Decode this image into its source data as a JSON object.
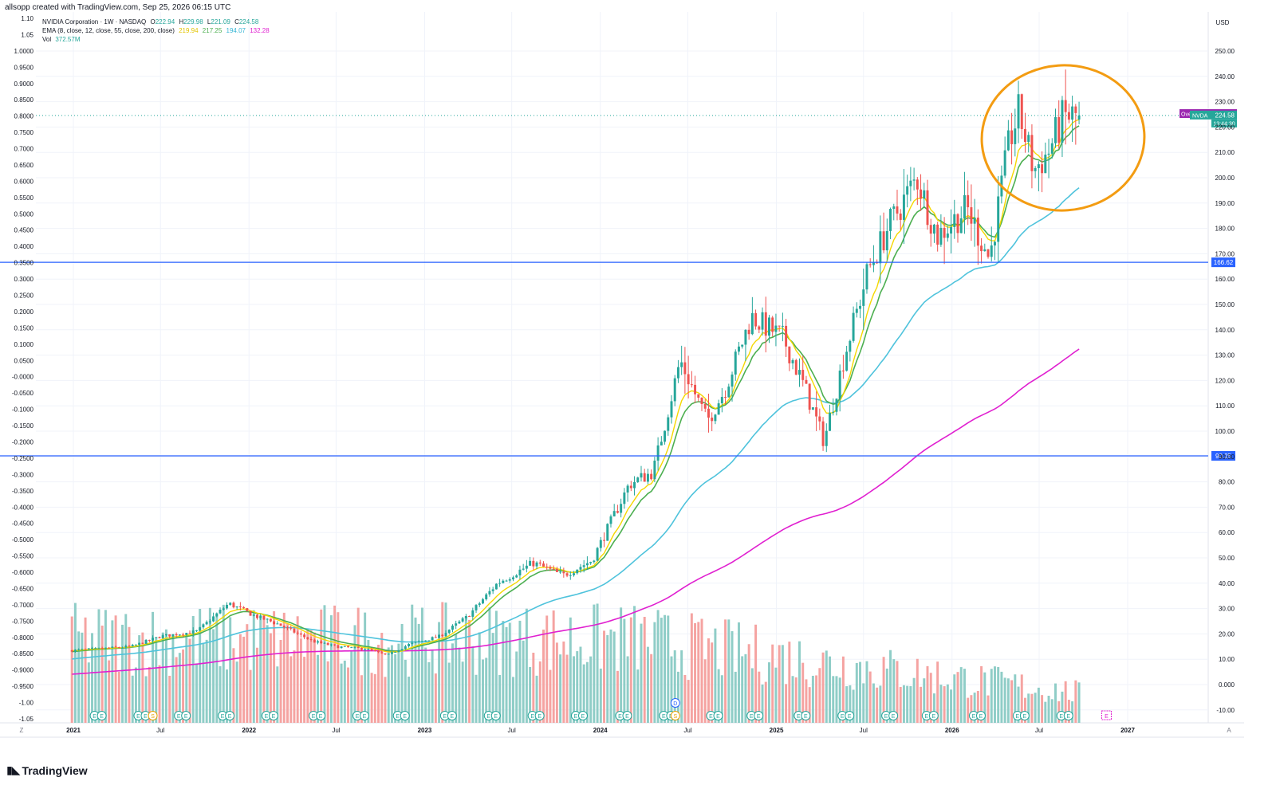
{
  "caption": "allsopp created with TradingView.com, Sep 25, 2026 06:15 UTC",
  "legend": {
    "symbol": "NVIDIA Corporation · 1W · NASDAQ",
    "o_label": "O",
    "o": "222.94",
    "h_label": "H",
    "h": "229.98",
    "l_label": "L",
    "l": "221.09",
    "c_label": "C",
    "c": "224.58",
    "ema_label": "EMA (8, close, 12, close, 55, close, 200, close)",
    "ema_values": [
      "219.94",
      "217.25",
      "194.07",
      "132.28"
    ],
    "vol_label": "Vol",
    "vol_value": "372.57M"
  },
  "price_axis": {
    "currency": "USD",
    "ticks": [
      "250.00",
      "240.00",
      "230.00",
      "220.00",
      "210.00",
      "200.00",
      "190.00",
      "180.00",
      "170.00",
      "160.00",
      "150.00",
      "140.00",
      "130.00",
      "120.00",
      "110.00",
      "100.00",
      "90.00",
      "80.00",
      "70.00",
      "60.00",
      "50.00",
      "40.00",
      "30.00",
      "20.00",
      "10.00",
      "0.000",
      "-10.00"
    ],
    "overnight_label": "Overnight",
    "overnight_value": "225.15",
    "nvda_label": "NVDA",
    "nvda_value": "224.58",
    "countdown": "13:44:30",
    "line_upper_value": "166.62",
    "line_lower_value": "90.25"
  },
  "left_axis": {
    "ticks": [
      "1.10",
      "1.05",
      "1.0000",
      "0.9500",
      "0.9000",
      "0.8500",
      "0.8000",
      "0.7500",
      "0.7000",
      "0.6500",
      "0.6000",
      "0.5500",
      "0.5000",
      "0.4500",
      "0.4000",
      "0.3500",
      "0.3000",
      "0.2500",
      "0.2000",
      "0.1500",
      "0.1000",
      "0.0500",
      "-0.0000",
      "-0.0500",
      "-0.1000",
      "-0.1500",
      "-0.2000",
      "-0.2500",
      "-0.3000",
      "-0.3500",
      "-0.4000",
      "-0.4500",
      "-0.5000",
      "-0.5500",
      "-0.6000",
      "-0.6500",
      "-0.7000",
      "-0.7500",
      "-0.8000",
      "-0.8500",
      "-0.9000",
      "-0.9500",
      "-1.00",
      "-1.05"
    ]
  },
  "time_axis": {
    "labels": [
      "2021",
      "Jul",
      "2022",
      "Jul",
      "2023",
      "Jul",
      "2024",
      "Jul",
      "2025",
      "Jul",
      "2026",
      "Jul",
      "2027"
    ],
    "left_button": "Z",
    "right_button": "A"
  },
  "event_markers": {
    "earnings": "E",
    "split": "S",
    "dividend": "D"
  },
  "colors": {
    "up": "#26a69a",
    "down": "#ef5350",
    "vol_up": "#8fcdc7",
    "vol_down": "#f5a3a1",
    "ema8": "#f5d800",
    "ema12": "#4caf50",
    "ema55": "#4fc3dc",
    "ema200": "#e020d0",
    "hline": "#2962ff",
    "circle": "#f39c12",
    "overnight_bg": "#9c27b0",
    "nvda_bg": "#26a69a"
  },
  "chart_data": {
    "type": "candlestick",
    "title": "NVIDIA Corporation · 1W · NASDAQ",
    "ylim": [
      -15,
      260
    ],
    "horizontal_lines": [
      166.62,
      90.25
    ],
    "last_close": 224.58,
    "control_points": [
      {
        "date": "2021-01-01",
        "close": 13.5
      },
      {
        "date": "2021-05-01",
        "close": 15
      },
      {
        "date": "2021-07-01",
        "close": 19
      },
      {
        "date": "2021-09-15",
        "close": 21
      },
      {
        "date": "2021-11-20",
        "close": 32
      },
      {
        "date": "2022-01-15",
        "close": 27
      },
      {
        "date": "2022-03-01",
        "close": 24
      },
      {
        "date": "2022-05-15",
        "close": 17
      },
      {
        "date": "2022-07-01",
        "close": 15
      },
      {
        "date": "2022-09-01",
        "close": 14
      },
      {
        "date": "2022-10-15",
        "close": 11.5
      },
      {
        "date": "2022-12-01",
        "close": 16
      },
      {
        "date": "2023-02-01",
        "close": 19
      },
      {
        "date": "2023-04-01",
        "close": 27
      },
      {
        "date": "2023-06-01",
        "close": 40
      },
      {
        "date": "2023-08-15",
        "close": 48
      },
      {
        "date": "2023-10-15",
        "close": 43
      },
      {
        "date": "2023-12-15",
        "close": 49
      },
      {
        "date": "2024-03-01",
        "close": 79
      },
      {
        "date": "2024-04-20",
        "close": 84
      },
      {
        "date": "2024-06-15",
        "close": 128
      },
      {
        "date": "2024-08-10",
        "close": 104
      },
      {
        "date": "2024-09-15",
        "close": 116
      },
      {
        "date": "2024-11-10",
        "close": 145
      },
      {
        "date": "2025-01-15",
        "close": 137
      },
      {
        "date": "2025-03-01",
        "close": 117
      },
      {
        "date": "2025-04-10",
        "close": 96
      },
      {
        "date": "2025-05-20",
        "close": 128
      },
      {
        "date": "2025-07-10",
        "close": 163
      },
      {
        "date": "2025-08-20",
        "close": 180
      },
      {
        "date": "2025-10-20",
        "close": 200
      },
      {
        "date": "2025-12-01",
        "close": 177
      },
      {
        "date": "2026-02-01",
        "close": 188
      },
      {
        "date": "2026-03-20",
        "close": 168
      },
      {
        "date": "2026-05-01",
        "close": 215
      },
      {
        "date": "2026-05-20",
        "close": 226
      },
      {
        "date": "2026-06-20",
        "close": 203
      },
      {
        "date": "2026-07-20",
        "close": 210
      },
      {
        "date": "2026-08-20",
        "close": 224
      },
      {
        "date": "2026-09-25",
        "close": 224.58
      }
    ],
    "ema_latest": {
      "ema8": 219.94,
      "ema12": 217.25,
      "ema55": 194.07,
      "ema200": 132.28
    },
    "volume_latest": "372.57M"
  }
}
